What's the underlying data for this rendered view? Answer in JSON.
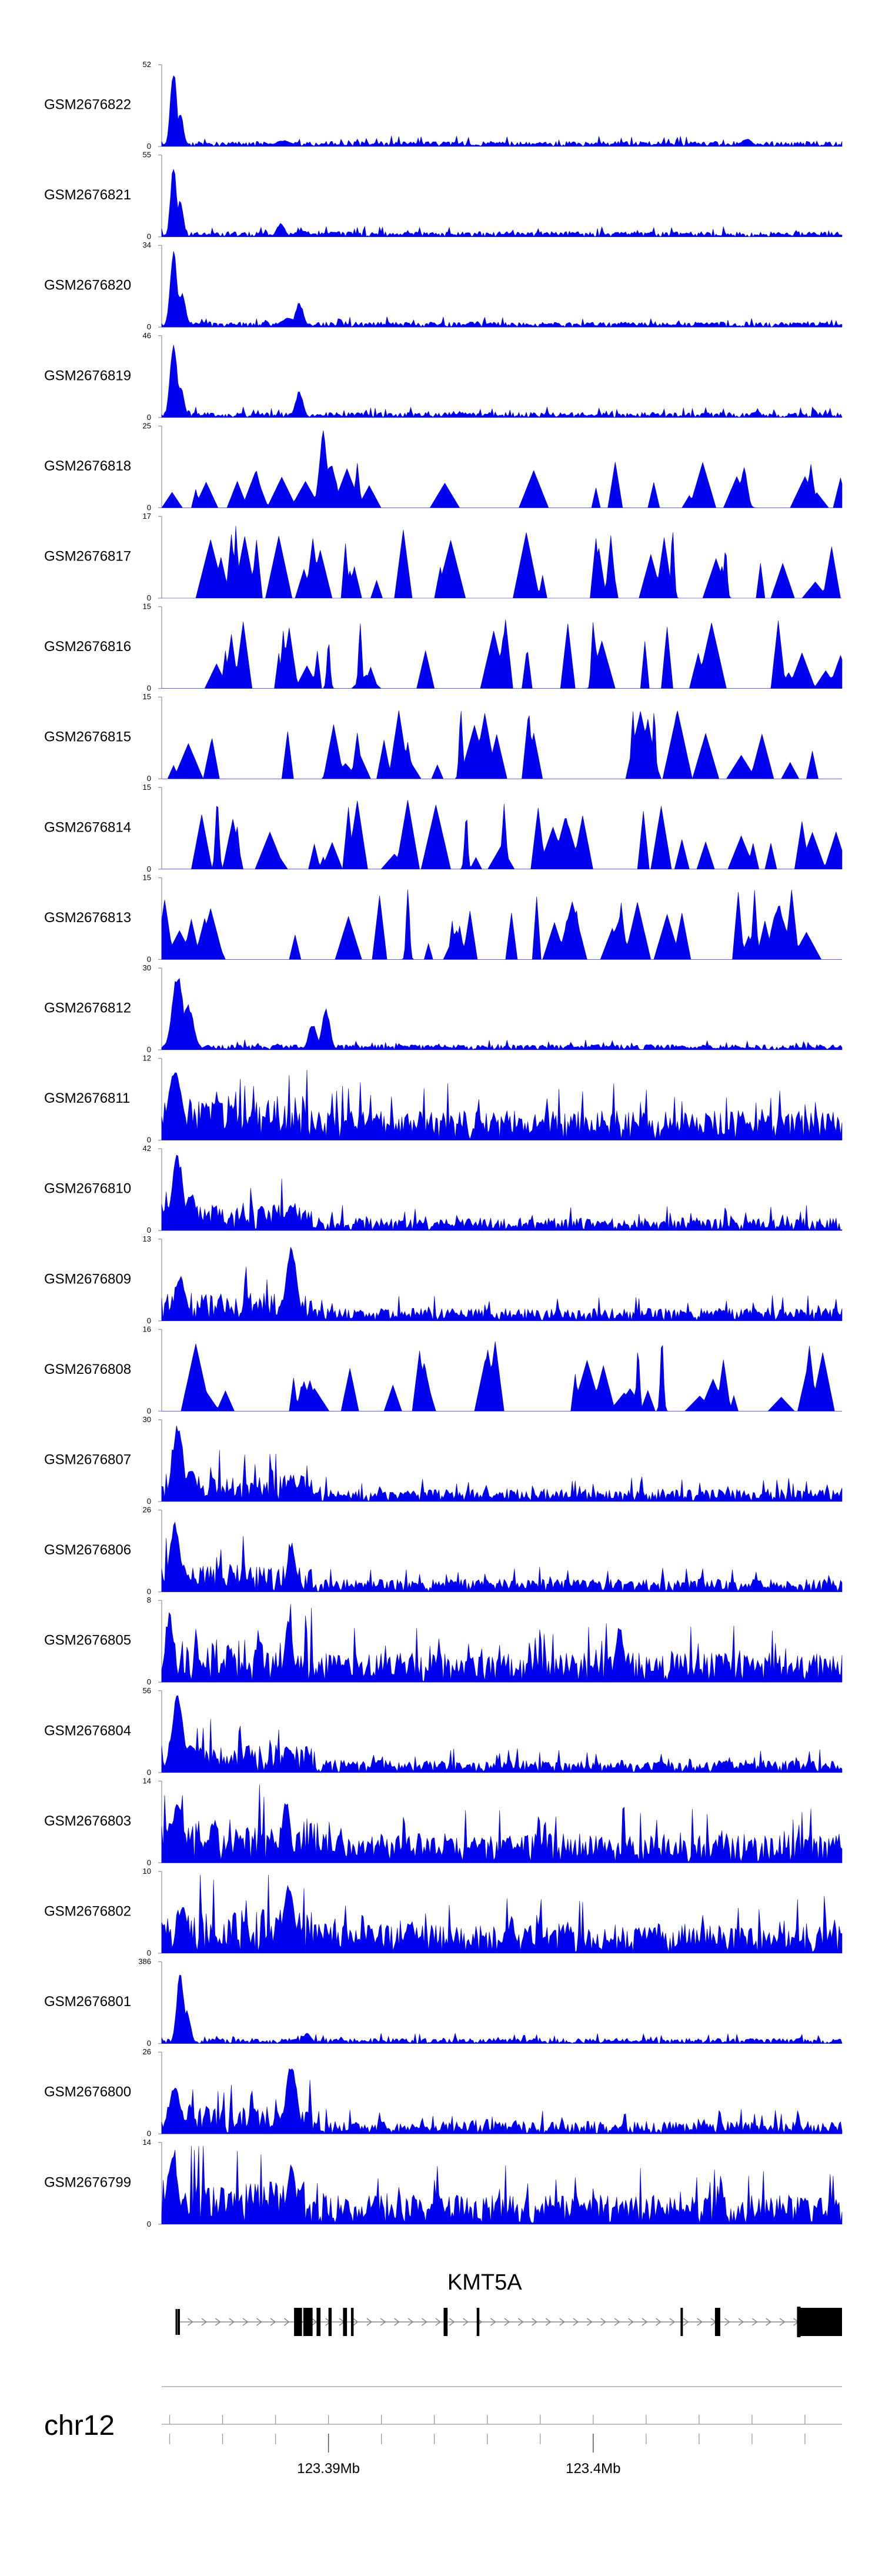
{
  "chart_data": {
    "type": "area",
    "title": "",
    "genome_x_range": [
      123383700,
      123409400
    ],
    "tracks": [
      {
        "name": "GSM2676822",
        "ymax": 52,
        "ymin": 0,
        "pattern": "early",
        "seed": 11,
        "peaks": [
          [
            123384150,
            1.0,
            120
          ],
          [
            123384400,
            0.45,
            120
          ],
          [
            123388300,
            0.08,
            300
          ],
          [
            123405800,
            0.1,
            200
          ]
        ]
      },
      {
        "name": "GSM2676821",
        "ymax": 55,
        "ymin": 0,
        "pattern": "early",
        "seed": 12,
        "peaks": [
          [
            123384150,
            1.0,
            110
          ],
          [
            123384400,
            0.5,
            110
          ],
          [
            123388200,
            0.18,
            150
          ],
          [
            123389000,
            0.08,
            250
          ]
        ]
      },
      {
        "name": "GSM2676820",
        "ymax": 34,
        "ymin": 0,
        "pattern": "early",
        "seed": 13,
        "peaks": [
          [
            123384150,
            1.0,
            130
          ],
          [
            123384450,
            0.45,
            150
          ],
          [
            123388900,
            0.32,
            150
          ],
          [
            123388500,
            0.12,
            300
          ]
        ]
      },
      {
        "name": "GSM2676819",
        "ymax": 46,
        "ymin": 0,
        "pattern": "early",
        "seed": 14,
        "peaks": [
          [
            123384150,
            1.0,
            130
          ],
          [
            123384400,
            0.45,
            130
          ],
          [
            123388900,
            0.35,
            140
          ]
        ]
      },
      {
        "name": "GSM2676818",
        "ymax": 25,
        "ymin": 0,
        "pattern": "sparse",
        "seed": 15,
        "peaks": [
          [
            123389800,
            1.0,
            150
          ],
          [
            123390100,
            0.55,
            200
          ],
          [
            123405700,
            0.55,
            120
          ]
        ]
      },
      {
        "name": "GSM2676817",
        "ymax": 17,
        "ymin": 0,
        "pattern": "spiky",
        "seed": 16,
        "peaks": [
          [
            123386500,
            0.95,
            60
          ],
          [
            123403000,
            0.95,
            60
          ],
          [
            123405000,
            0.7,
            60
          ]
        ]
      },
      {
        "name": "GSM2676816",
        "ymax": 15,
        "ymin": 0,
        "pattern": "spiky",
        "seed": 17,
        "peaks": [
          [
            123391200,
            0.95,
            60
          ],
          [
            123400000,
            0.95,
            60
          ],
          [
            123390000,
            0.65,
            60
          ]
        ]
      },
      {
        "name": "GSM2676815",
        "ymax": 15,
        "ymin": 0,
        "pattern": "spiky",
        "seed": 18,
        "peaks": [
          [
            123395000,
            0.95,
            60
          ],
          [
            123401500,
            0.95,
            60
          ],
          [
            123402300,
            0.95,
            60
          ]
        ]
      },
      {
        "name": "GSM2676814",
        "ymax": 15,
        "ymin": 0,
        "pattern": "spiky",
        "seed": 19,
        "peaks": [
          [
            123385800,
            0.9,
            70
          ],
          [
            123395200,
            0.75,
            60
          ]
        ]
      },
      {
        "name": "GSM2676813",
        "ymax": 15,
        "ymin": 0,
        "pattern": "spiky",
        "seed": 20,
        "peaks": [
          [
            123393000,
            0.95,
            60
          ],
          [
            123407000,
            0.72,
            250
          ]
        ]
      },
      {
        "name": "GSM2676812",
        "ymax": 30,
        "ymin": 0,
        "pattern": "early",
        "seed": 21,
        "peaks": [
          [
            123384300,
            1.0,
            200
          ],
          [
            123384700,
            0.6,
            200
          ],
          [
            123389900,
            0.55,
            150
          ],
          [
            123389400,
            0.35,
            150
          ]
        ]
      },
      {
        "name": "GSM2676811",
        "ymax": 12,
        "ymin": 0,
        "pattern": "dense",
        "seed": 22,
        "peaks": [
          [
            123384200,
            0.95,
            250
          ],
          [
            123385800,
            0.6,
            150
          ]
        ]
      },
      {
        "name": "GSM2676810",
        "ymax": 42,
        "ymin": 0,
        "pattern": "block",
        "seed": 23,
        "peaks": [
          [
            123384300,
            1.0,
            200
          ],
          [
            123384800,
            0.5,
            200
          ],
          [
            123388600,
            0.32,
            250
          ]
        ]
      },
      {
        "name": "GSM2676809",
        "ymax": 13,
        "ymin": 0,
        "pattern": "block",
        "seed": 24,
        "peaks": [
          [
            123388600,
            0.95,
            200
          ],
          [
            123384400,
            0.6,
            200
          ]
        ]
      },
      {
        "name": "GSM2676808",
        "ymax": 16,
        "ymin": 0,
        "pattern": "spiky",
        "seed": 25,
        "peaks": [
          [
            123402600,
            0.95,
            60
          ],
          [
            123401700,
            0.85,
            60
          ]
        ]
      },
      {
        "name": "GSM2676807",
        "ymax": 30,
        "ymin": 0,
        "pattern": "block",
        "seed": 26,
        "peaks": [
          [
            123384300,
            1.0,
            200
          ],
          [
            123384800,
            0.45,
            200
          ],
          [
            123388600,
            0.32,
            200
          ]
        ]
      },
      {
        "name": "GSM2676806",
        "ymax": 26,
        "ymin": 0,
        "pattern": "block",
        "seed": 27,
        "peaks": [
          [
            123384200,
            0.9,
            200
          ],
          [
            123388600,
            0.65,
            150
          ]
        ]
      },
      {
        "name": "GSM2676805",
        "ymax": 8,
        "ymin": 0,
        "pattern": "dense",
        "seed": 28,
        "peaks": [
          [
            123384000,
            0.9,
            150
          ],
          [
            123388500,
            0.82,
            150
          ],
          [
            123401000,
            0.75,
            150
          ]
        ]
      },
      {
        "name": "GSM2676804",
        "ymax": 56,
        "ymin": 0,
        "pattern": "block",
        "seed": 29,
        "peaks": [
          [
            123384300,
            1.0,
            220
          ],
          [
            123384800,
            0.4,
            200
          ],
          [
            123388500,
            0.32,
            200
          ]
        ]
      },
      {
        "name": "GSM2676803",
        "ymax": 14,
        "ymin": 0,
        "pattern": "dense",
        "seed": 30,
        "peaks": [
          [
            123384300,
            0.85,
            200
          ],
          [
            123388400,
            0.85,
            150
          ]
        ]
      },
      {
        "name": "GSM2676802",
        "ymax": 10,
        "ymin": 0,
        "pattern": "dense",
        "seed": 31,
        "peaks": [
          [
            123388500,
            0.95,
            200
          ],
          [
            123384500,
            0.6,
            200
          ]
        ]
      },
      {
        "name": "GSM2676801",
        "ymax": 386,
        "ymin": 0,
        "pattern": "early",
        "seed": 32,
        "peaks": [
          [
            123384400,
            1.0,
            130
          ],
          [
            123384650,
            0.45,
            130
          ],
          [
            123389200,
            0.14,
            150
          ],
          [
            123388700,
            0.06,
            150
          ]
        ]
      },
      {
        "name": "GSM2676800",
        "ymax": 26,
        "ymin": 0,
        "pattern": "block",
        "seed": 33,
        "peaks": [
          [
            123388600,
            0.95,
            200
          ],
          [
            123384200,
            0.65,
            200
          ]
        ]
      },
      {
        "name": "GSM2676799",
        "ymax": 14,
        "ymin": 0,
        "pattern": "dense",
        "seed": 34,
        "peaks": [
          [
            123384100,
            0.9,
            200
          ],
          [
            123388600,
            0.85,
            150
          ]
        ]
      }
    ],
    "gene": {
      "name": "KMT5A",
      "strand": "+",
      "start": 123384300,
      "end": 123409400,
      "exons": [
        [
          123384300,
          123384370
        ],
        [
          123388700,
          123389000
        ],
        [
          123389050,
          123389400
        ],
        [
          123389550,
          123389700
        ],
        [
          123390000,
          123390120
        ],
        [
          123390550,
          123390700
        ],
        [
          123390850,
          123390950
        ],
        [
          123394350,
          123394500
        ],
        [
          123395600,
          123395700
        ],
        [
          123403300,
          123403380
        ],
        [
          123404600,
          123404800
        ],
        [
          123407700,
          123409400
        ]
      ]
    },
    "chromosome": "chr12",
    "x_ticks": [
      123384000,
      123386000,
      123388000,
      123390000,
      123392000,
      123394000,
      123396000,
      123398000,
      123400000,
      123402000,
      123404000,
      123406000,
      123408000
    ],
    "x_tick_labels": [
      {
        "pos": 123390000,
        "label": "123.39Mb"
      },
      {
        "pos": 123400000,
        "label": "123.4Mb"
      }
    ]
  }
}
